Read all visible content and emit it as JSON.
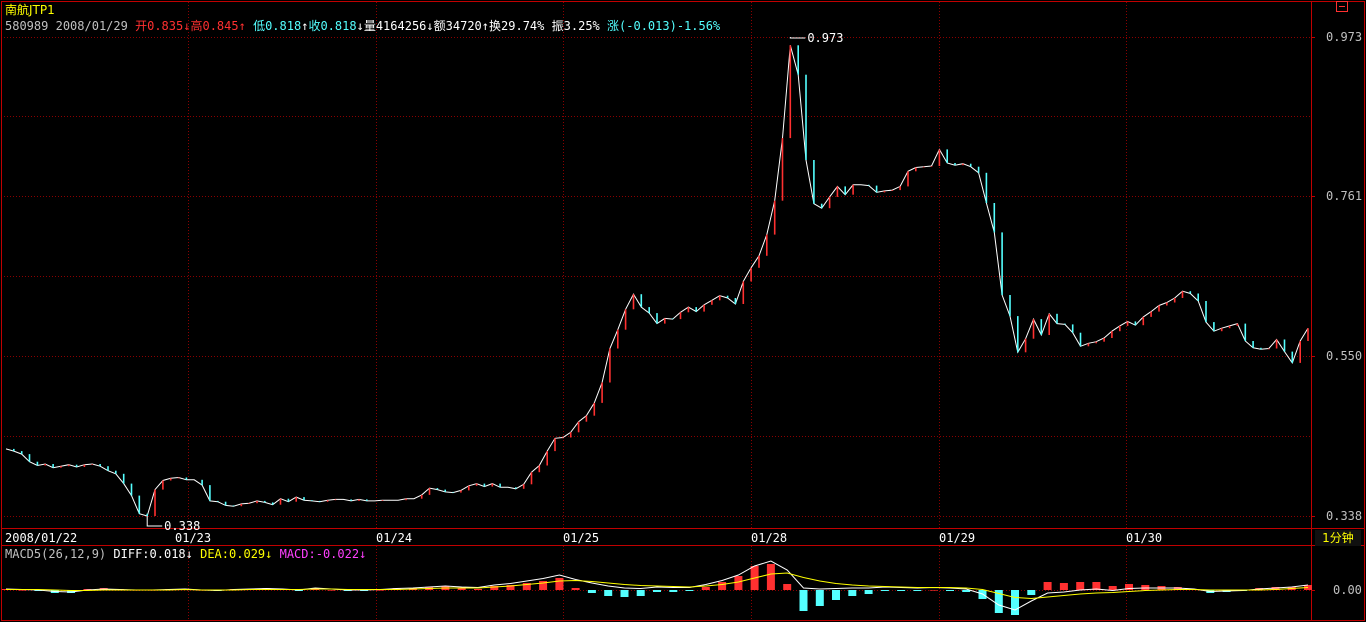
{
  "security": {
    "name": "南航JTP1",
    "code": "580989",
    "date": "2008/01/29"
  },
  "quote": {
    "open_label": "开",
    "open": "0.835",
    "high_label": "高",
    "high": "0.845",
    "low_label": "低",
    "low": "0.818",
    "close_label": "收",
    "close": "0.818",
    "volume_label": "量",
    "volume": "4164256",
    "amount_label": "额",
    "amount": "34720",
    "turnover_label": "换",
    "turnover": "29.74%",
    "amplitude_label": "振",
    "amplitude": "3.25%",
    "change_label": "涨",
    "change": "(-0.013)-1.56%"
  },
  "indicator": {
    "name": "MACD5(26,12,9)",
    "diff_label": "DIFF:",
    "diff": "0.018",
    "dea_label": "DEA:",
    "dea": "0.029",
    "macd_label": "MACD:",
    "macd": "-0.022"
  },
  "period": "1分钟",
  "colors": {
    "up": "#ff3030",
    "down": "#54ffff",
    "grid": "#8b0000",
    "frame": "#c00000",
    "axis_text": "#c0c0c0"
  },
  "icons": [
    "window-toggle-icon",
    "arrow-up-icon",
    "arrow-down-icon"
  ],
  "chart_data": [
    {
      "type": "line",
      "name": "price",
      "x_labels": [
        "2008/01/22",
        "01/23",
        "01/24",
        "01/25",
        "01/28",
        "01/29",
        "01/30"
      ],
      "y_ticks": [
        "0.973",
        "0.761",
        "0.550",
        "0.338"
      ],
      "ylim": [
        0.338,
        0.973
      ],
      "grid": true,
      "annotations": [
        {
          "text": "0.973",
          "x": "01/29",
          "y": 0.973
        },
        {
          "text": "0.338",
          "x": "01/23",
          "y": 0.338
        }
      ],
      "series": [
        {
          "values": [
            0.427,
            0.424,
            0.42,
            0.41,
            0.405,
            0.407,
            0.402,
            0.404,
            0.406,
            0.403,
            0.406,
            0.407,
            0.404,
            0.398,
            0.394,
            0.381,
            0.365,
            0.341,
            0.338,
            0.373,
            0.385,
            0.388,
            0.389,
            0.386,
            0.386,
            0.379,
            0.358,
            0.357,
            0.352,
            0.351,
            0.354,
            0.355,
            0.358,
            0.356,
            0.353,
            0.361,
            0.357,
            0.363,
            0.359,
            0.358,
            0.357,
            0.359,
            0.36,
            0.36,
            0.358,
            0.36,
            0.358,
            0.358,
            0.359,
            0.359,
            0.359,
            0.361,
            0.361,
            0.366,
            0.375,
            0.373,
            0.37,
            0.369,
            0.372,
            0.378,
            0.381,
            0.377,
            0.381,
            0.376,
            0.376,
            0.374,
            0.38,
            0.396,
            0.405,
            0.424,
            0.441,
            0.442,
            0.449,
            0.463,
            0.471,
            0.488,
            0.515,
            0.56,
            0.585,
            0.612,
            0.632,
            0.615,
            0.607,
            0.593,
            0.6,
            0.599,
            0.608,
            0.615,
            0.609,
            0.618,
            0.624,
            0.63,
            0.627,
            0.619,
            0.649,
            0.667,
            0.683,
            0.711,
            0.756,
            0.839,
            0.962,
            0.923,
            0.81,
            0.752,
            0.746,
            0.761,
            0.775,
            0.764,
            0.777,
            0.777,
            0.776,
            0.767,
            0.769,
            0.77,
            0.775,
            0.795,
            0.8,
            0.801,
            0.802,
            0.824,
            0.806,
            0.803,
            0.805,
            0.801,
            0.793,
            0.753,
            0.714,
            0.631,
            0.603,
            0.555,
            0.573,
            0.599,
            0.578,
            0.606,
            0.593,
            0.592,
            0.581,
            0.563,
            0.567,
            0.569,
            0.574,
            0.583,
            0.59,
            0.596,
            0.591,
            0.602,
            0.609,
            0.617,
            0.621,
            0.627,
            0.636,
            0.633,
            0.623,
            0.595,
            0.583,
            0.587,
            0.59,
            0.593,
            0.57,
            0.561,
            0.559,
            0.56,
            0.572,
            0.556,
            0.541,
            0.57,
            0.587
          ]
        }
      ]
    },
    {
      "type": "line",
      "name": "MACD5(26,12,9)",
      "y_ticks": [
        "0.00"
      ],
      "grid": true,
      "series": [
        {
          "name": "DIFF",
          "values": [
            0.002,
            0.001,
            0.0,
            -0.003,
            -0.004,
            0.0,
            0.002,
            0.001,
            0.0,
            0.0,
            0.001,
            0.002,
            0.0,
            -0.001,
            0.001,
            0.002,
            0.003,
            0.002,
            0.0,
            0.004,
            0.002,
            0.0,
            0.0,
            0.001,
            0.003,
            0.004,
            0.006,
            0.008,
            0.006,
            0.005,
            0.01,
            0.013,
            0.018,
            0.023,
            0.03,
            0.021,
            0.014,
            0.008,
            0.004,
            0.003,
            0.006,
            0.005,
            0.005,
            0.011,
            0.019,
            0.03,
            0.048,
            0.058,
            0.04,
            0.004,
            0.002,
            0.003,
            0.004,
            0.004,
            0.006,
            0.005,
            0.004,
            0.005,
            0.004,
            0.002,
            -0.008,
            -0.03,
            -0.04,
            -0.022,
            -0.006,
            -0.004,
            0.0,
            0.002,
            -0.001,
            0.003,
            0.004,
            0.004,
            0.004,
            0.002,
            -0.003,
            -0.002,
            -0.001,
            0.002,
            0.004,
            0.006,
            0.01
          ]
        },
        {
          "name": "DEA",
          "values": [
            0.001,
            0.001,
            0.001,
            0.0,
            -0.001,
            -0.001,
            0.0,
            0.0,
            0.0,
            0.0,
            0.0,
            0.001,
            0.0,
            0.0,
            0.0,
            0.001,
            0.001,
            0.001,
            0.001,
            0.002,
            0.002,
            0.001,
            0.001,
            0.001,
            0.001,
            0.002,
            0.003,
            0.004,
            0.004,
            0.004,
            0.006,
            0.008,
            0.011,
            0.014,
            0.018,
            0.019,
            0.017,
            0.014,
            0.011,
            0.009,
            0.008,
            0.007,
            0.006,
            0.008,
            0.011,
            0.016,
            0.024,
            0.032,
            0.034,
            0.025,
            0.018,
            0.013,
            0.01,
            0.008,
            0.007,
            0.006,
            0.005,
            0.005,
            0.005,
            0.004,
            0.001,
            -0.007,
            -0.015,
            -0.017,
            -0.014,
            -0.011,
            -0.008,
            -0.006,
            -0.005,
            -0.003,
            -0.001,
            0.0,
            0.001,
            0.001,
            0.0,
            0.0,
            0.0,
            0.0,
            0.001,
            0.003,
            0.005
          ]
        }
      ]
    }
  ]
}
